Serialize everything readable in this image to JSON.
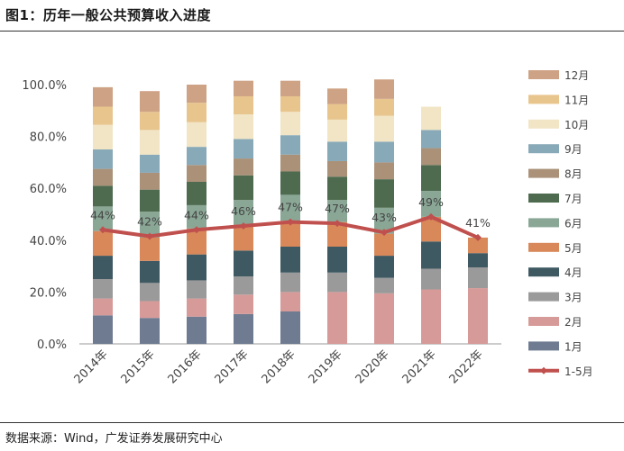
{
  "header": {
    "title": "图1：历年一般公共预算收入进度"
  },
  "footer": {
    "source": "数据来源：Wind，广发证券发展研究中心"
  },
  "chart_data": {
    "type": "bar",
    "stacked": true,
    "title": "图1：历年一般公共预算收入进度",
    "categories": [
      "2014年",
      "2015年",
      "2016年",
      "2017年",
      "2018年",
      "2019年",
      "2020年",
      "2021年",
      "2022年"
    ],
    "ylim": [
      0,
      1.0
    ],
    "yticks": [
      "0.0%",
      "20.0%",
      "40.0%",
      "60.0%",
      "80.0%",
      "100.0%"
    ],
    "series": [
      {
        "name": "1月",
        "color": "#6e7b91",
        "values": [
          0.11,
          0.1,
          0.105,
          0.115,
          0.125,
          0,
          0,
          0,
          0
        ]
      },
      {
        "name": "2月",
        "color": "#d69a98",
        "values": [
          0.065,
          0.065,
          0.07,
          0.075,
          0.075,
          0.2,
          0.195,
          0.21,
          0.215
        ]
      },
      {
        "name": "3月",
        "color": "#9a9a9a",
        "values": [
          0.075,
          0.07,
          0.07,
          0.07,
          0.075,
          0.075,
          0.06,
          0.08,
          0.08
        ]
      },
      {
        "name": "4月",
        "color": "#3e5962",
        "values": [
          0.09,
          0.085,
          0.1,
          0.1,
          0.1,
          0.1,
          0.085,
          0.105,
          0.055
        ]
      },
      {
        "name": "5月",
        "color": "#d9885a",
        "values": [
          0.095,
          0.09,
          0.1,
          0.1,
          0.1,
          0.095,
          0.085,
          0.095,
          0.06
        ]
      },
      {
        "name": "6月",
        "color": "#8aa796",
        "values": [
          0.095,
          0.1,
          0.09,
          0.095,
          0.1,
          0.085,
          0.1,
          0.1,
          0
        ]
      },
      {
        "name": "7月",
        "color": "#4e6b4f",
        "values": [
          0.08,
          0.085,
          0.09,
          0.095,
          0.09,
          0.09,
          0.11,
          0.1,
          0
        ]
      },
      {
        "name": "8月",
        "color": "#aa9178",
        "values": [
          0.065,
          0.065,
          0.065,
          0.065,
          0.065,
          0.06,
          0.065,
          0.065,
          0
        ]
      },
      {
        "name": "9月",
        "color": "#88a9b8",
        "values": [
          0.075,
          0.07,
          0.07,
          0.075,
          0.075,
          0.075,
          0.08,
          0.07,
          0
        ]
      },
      {
        "name": "10月",
        "color": "#f1e5c6",
        "values": [
          0.095,
          0.095,
          0.095,
          0.095,
          0.09,
          0.085,
          0.1,
          0.09,
          0
        ]
      },
      {
        "name": "11月",
        "color": "#e8c58d",
        "values": [
          0.07,
          0.07,
          0.075,
          0.07,
          0.06,
          0.06,
          0.065,
          0,
          0
        ]
      },
      {
        "name": "12月",
        "color": "#cea284",
        "values": [
          0.075,
          0.08,
          0.07,
          0.06,
          0.06,
          0.06,
          0.075,
          0,
          0
        ]
      }
    ],
    "line": {
      "name": "1-5月",
      "color": "#c0504d",
      "values": [
        0.44,
        0.415,
        0.44,
        0.455,
        0.47,
        0.465,
        0.43,
        0.49,
        0.41
      ],
      "labels": [
        "44%",
        "42%",
        "44%",
        "46%",
        "47%",
        "47%",
        "43%",
        "49%",
        "41%"
      ]
    }
  }
}
